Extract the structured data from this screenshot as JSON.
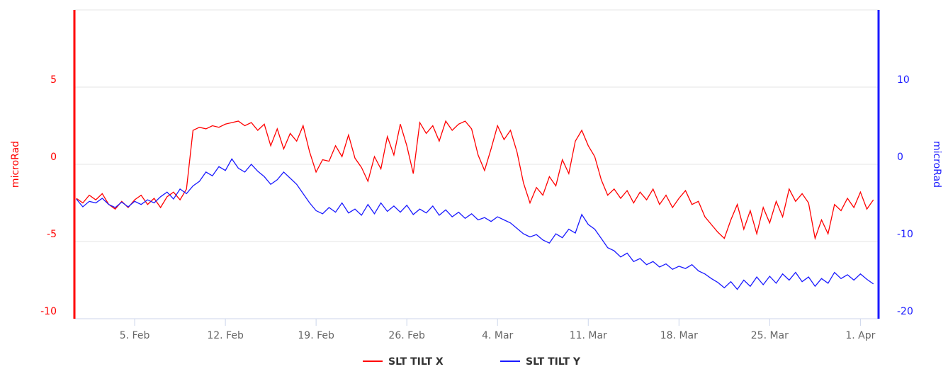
{
  "chart_data": {
    "type": "line",
    "y_label": "microRad",
    "y2_label": "microRad",
    "x": [
      31.5,
      32,
      32.5,
      33,
      33.5,
      34,
      34.5,
      35,
      35.5,
      36,
      36.5,
      37,
      37.5,
      38,
      38.5,
      39,
      39.5,
      40,
      40.5,
      41,
      41.5,
      42,
      42.5,
      43,
      43.5,
      44,
      44.5,
      45,
      45.5,
      46,
      46.5,
      47,
      47.5,
      48,
      48.5,
      49,
      49.5,
      50,
      50.5,
      51,
      51.5,
      52,
      52.5,
      53,
      53.5,
      54,
      54.5,
      55,
      55.5,
      56,
      56.5,
      57,
      57.5,
      58,
      58.5,
      59,
      59.5,
      60,
      60.5,
      61,
      61.5,
      62,
      62.5,
      63,
      63.5,
      64,
      64.5,
      65,
      65.5,
      66,
      66.5,
      67,
      67.5,
      68,
      68.5,
      69,
      69.5,
      70,
      70.5,
      71,
      71.5,
      72,
      72.5,
      73,
      73.5,
      74,
      74.5,
      75,
      75.5,
      76,
      76.5,
      77,
      77.5,
      78,
      78.5,
      79,
      79.5,
      80,
      80.5,
      81,
      81.5,
      82,
      82.5,
      83,
      83.5,
      84,
      84.5,
      85,
      85.5,
      86,
      86.5,
      87,
      87.5,
      88,
      88.5,
      89,
      89.5,
      90,
      90.5,
      91,
      91.5,
      92,
      92.5,
      93
    ],
    "series": [
      {
        "name": "SLT TILT X",
        "color": "#ff0000",
        "axis": "y",
        "values": [
          -2.2,
          -2.5,
          -2.0,
          -2.3,
          -1.9,
          -2.6,
          -2.9,
          -2.4,
          -2.8,
          -2.3,
          -2.0,
          -2.6,
          -2.2,
          -2.8,
          -2.1,
          -1.8,
          -2.3,
          -1.6,
          2.2,
          2.4,
          2.3,
          2.5,
          2.4,
          2.6,
          2.7,
          2.8,
          2.5,
          2.7,
          2.2,
          2.6,
          1.2,
          2.3,
          1.0,
          2.0,
          1.5,
          2.5,
          0.8,
          -0.5,
          0.3,
          0.2,
          1.2,
          0.5,
          1.9,
          0.4,
          -0.2,
          -1.1,
          0.5,
          -0.3,
          1.8,
          0.6,
          2.6,
          1.2,
          -0.6,
          2.7,
          2.0,
          2.5,
          1.5,
          2.8,
          2.2,
          2.6,
          2.8,
          2.3,
          0.6,
          -0.4,
          1.0,
          2.5,
          1.6,
          2.2,
          0.8,
          -1.2,
          -2.5,
          -1.5,
          -2.0,
          -0.8,
          -1.4,
          0.3,
          -0.6,
          1.5,
          2.2,
          1.2,
          0.5,
          -1.0,
          -2.0,
          -1.6,
          -2.2,
          -1.7,
          -2.5,
          -1.8,
          -2.3,
          -1.6,
          -2.6,
          -2.0,
          -2.8,
          -2.2,
          -1.7,
          -2.6,
          -2.4,
          -3.4,
          -3.9,
          -4.4,
          -4.8,
          -3.6,
          -2.6,
          -4.2,
          -3.0,
          -4.5,
          -2.8,
          -3.8,
          -2.4,
          -3.4,
          -1.6,
          -2.4,
          -1.9,
          -2.5,
          -4.8,
          -3.6,
          -4.5,
          -2.6,
          -3.0,
          -2.2,
          -2.8,
          -1.8,
          -2.9,
          -2.3
        ]
      },
      {
        "name": "SLT TILT Y",
        "color": "#1a1aff",
        "axis": "y2",
        "values": [
          -4.5,
          -5.5,
          -4.8,
          -5.0,
          -4.4,
          -5.2,
          -5.6,
          -4.9,
          -5.5,
          -4.8,
          -5.2,
          -4.6,
          -5.0,
          -4.2,
          -3.6,
          -4.5,
          -3.2,
          -3.8,
          -2.8,
          -2.2,
          -1.0,
          -1.5,
          -0.3,
          -0.8,
          0.7,
          -0.5,
          -1.0,
          0.0,
          -0.9,
          -1.6,
          -2.6,
          -2.0,
          -1.0,
          -1.8,
          -2.6,
          -3.8,
          -5.0,
          -6.0,
          -6.4,
          -5.6,
          -6.2,
          -5.0,
          -6.3,
          -5.8,
          -6.6,
          -5.2,
          -6.4,
          -5.0,
          -6.1,
          -5.4,
          -6.2,
          -5.3,
          -6.5,
          -5.8,
          -6.3,
          -5.4,
          -6.6,
          -5.9,
          -6.8,
          -6.2,
          -7.0,
          -6.4,
          -7.2,
          -6.9,
          -7.4,
          -6.8,
          -7.2,
          -7.6,
          -8.3,
          -9.0,
          -9.4,
          -9.1,
          -9.8,
          -10.2,
          -9.0,
          -9.5,
          -8.4,
          -8.9,
          -6.5,
          -7.8,
          -8.4,
          -9.6,
          -10.8,
          -11.2,
          -12.0,
          -11.5,
          -12.6,
          -12.2,
          -13.0,
          -12.6,
          -13.3,
          -12.9,
          -13.6,
          -13.2,
          -13.5,
          -13.0,
          -13.8,
          -14.2,
          -14.8,
          -15.3,
          -16.0,
          -15.2,
          -16.2,
          -15.0,
          -15.8,
          -14.6,
          -15.6,
          -14.5,
          -15.4,
          -14.2,
          -15.0,
          -14.0,
          -15.2,
          -14.6,
          -15.8,
          -14.8,
          -15.4,
          -14.0,
          -14.8,
          -14.3,
          -15.0,
          -14.2,
          -14.9,
          -15.5
        ]
      }
    ],
    "xlim": [
      31.35,
      93.4
    ],
    "xticks": [
      {
        "value": 36,
        "label": "5. Feb"
      },
      {
        "value": 43,
        "label": "12. Feb"
      },
      {
        "value": 50,
        "label": "19. Feb"
      },
      {
        "value": 57,
        "label": "26. Feb"
      },
      {
        "value": 64,
        "label": "4. Mar"
      },
      {
        "value": 71,
        "label": "11. Mar"
      },
      {
        "value": 78,
        "label": "18. Mar"
      },
      {
        "value": 85,
        "label": "25. Mar"
      },
      {
        "value": 92,
        "label": "1. Apr"
      }
    ],
    "ylim": [
      -10,
      10
    ],
    "yticks": [
      -10,
      -5,
      0,
      5
    ],
    "y2lim": [
      -20,
      20
    ],
    "y2ticks": [
      -20,
      -10,
      0,
      10
    ],
    "grid": true
  }
}
